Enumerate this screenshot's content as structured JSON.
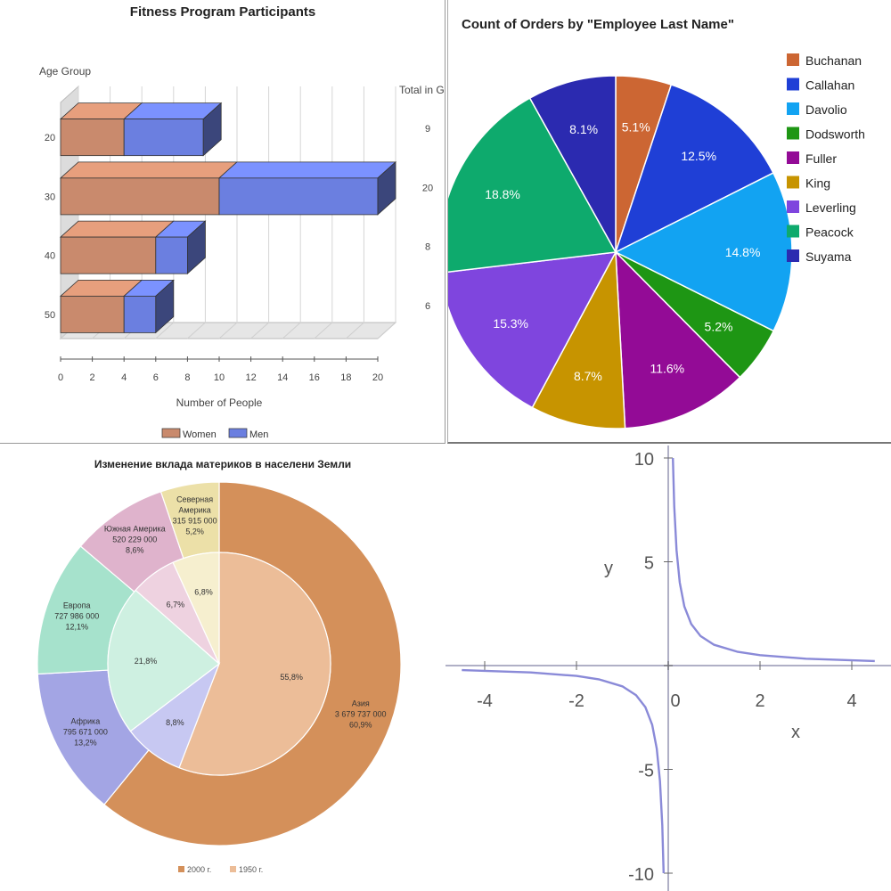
{
  "chart_data": [
    {
      "type": "bar",
      "orientation": "horizontal",
      "stacked": true,
      "style": "3d",
      "title": "Fitness Program Participants",
      "ylabel": "Age Group",
      "right_label": "Total in Group",
      "xlabel": "Number of People",
      "categories": [
        "20",
        "30",
        "40",
        "50"
      ],
      "series": [
        {
          "name": "Women",
          "color": "#c98a6d",
          "values": [
            4,
            10,
            6,
            4
          ]
        },
        {
          "name": "Men",
          "color": "#6b7fe0",
          "values": [
            5,
            10,
            2,
            2
          ]
        }
      ],
      "totals": [
        "9",
        "20",
        "8",
        "6"
      ],
      "xlim": [
        0,
        20
      ],
      "xticks": [
        "0",
        "2",
        "4",
        "6",
        "8",
        "10",
        "12",
        "14",
        "16",
        "18",
        "20"
      ],
      "grid": true,
      "legend": "bottom"
    },
    {
      "type": "pie",
      "title": "Count of Orders by \"Employee Last Name\"",
      "labels": [
        "Buchanan",
        "Callahan",
        "Davolio",
        "Dodsworth",
        "Fuller",
        "King",
        "Leverling",
        "Peacock",
        "Suyama"
      ],
      "values": [
        5.1,
        12.5,
        14.8,
        5.2,
        11.6,
        8.7,
        15.3,
        18.8,
        8.1
      ],
      "value_labels": [
        "5.1%",
        "12.5%",
        "14.8%",
        "5.2%",
        "11.6%",
        "8.7%",
        "15.3%",
        "18.8%",
        "8.1%"
      ],
      "colors": [
        "#cc6633",
        "#1f3fd6",
        "#12a3f2",
        "#1e9614",
        "#930b96",
        "#c79400",
        "#7f45de",
        "#0eaa6d",
        "#2b2ab0"
      ],
      "legend": "right"
    },
    {
      "type": "pie",
      "variant": "nested-donut",
      "title": "Изменение вклада материков в населени  Земли",
      "rings": [
        {
          "name": "2000 г.",
          "segments": [
            {
              "label": [
                "Азия",
                "3 679 737 000",
                "60,9%"
              ],
              "value": 60.9,
              "color": "#d4905a"
            },
            {
              "label": [
                "Африка",
                "795 671 000",
                "13,2%"
              ],
              "value": 13.2,
              "color": "#a3a5e4"
            },
            {
              "label": [
                "Европа",
                "727 986 000",
                "12,1%"
              ],
              "value": 12.1,
              "color": "#a6e2cc"
            },
            {
              "label": [
                "Южная Америка",
                "520 229 000",
                "8,6%"
              ],
              "value": 8.6,
              "color": "#dfb3cc"
            },
            {
              "label": [
                "Северная",
                "Америка",
                "315 915 000",
                "5,2%"
              ],
              "value": 5.2,
              "color": "#ece0a8"
            }
          ]
        },
        {
          "name": "1950 г.",
          "segments": [
            {
              "label": [
                "55,8%"
              ],
              "value": 55.8,
              "color": "#ecbd98"
            },
            {
              "label": [
                "8,8%"
              ],
              "value": 8.8,
              "color": "#c7c8f2"
            },
            {
              "label": [
                "21,8%"
              ],
              "value": 21.8,
              "color": "#cef0e1"
            },
            {
              "label": [
                "6,7%"
              ],
              "value": 6.7,
              "color": "#eed2e0"
            },
            {
              "label": [
                "6,8%"
              ],
              "value": 6.8,
              "color": "#f6efcf"
            }
          ]
        }
      ],
      "legend": "bottom",
      "legend_entries": [
        "2000 г.",
        "1950 г."
      ]
    },
    {
      "type": "line",
      "function": "y = 1/x",
      "xlabel": "x",
      "ylabel": "y",
      "xlim": [
        -4.6,
        4.6
      ],
      "ylim": [
        -10,
        10
      ],
      "xticks": [
        "-4",
        "-2",
        "0",
        "2",
        "4"
      ],
      "yticks": [
        "10",
        "5",
        "0",
        "-5",
        "-10"
      ],
      "line_color": "#8a8ad8",
      "series": [
        {
          "x": [
            -4.5,
            -3,
            -2,
            -1.5,
            -1,
            -0.7,
            -0.5,
            -0.35,
            -0.25,
            -0.18,
            -0.13,
            -0.1
          ],
          "y": [
            -0.22,
            -0.33,
            -0.5,
            -0.67,
            -1,
            -1.43,
            -2,
            -2.86,
            -4,
            -5.56,
            -7.69,
            -10
          ]
        },
        {
          "x": [
            0.1,
            0.13,
            0.18,
            0.25,
            0.35,
            0.5,
            0.7,
            1,
            1.5,
            2,
            3,
            4.5
          ],
          "y": [
            10,
            7.69,
            5.56,
            4,
            2.86,
            2,
            1.43,
            1,
            0.67,
            0.5,
            0.33,
            0.22
          ]
        }
      ]
    }
  ]
}
